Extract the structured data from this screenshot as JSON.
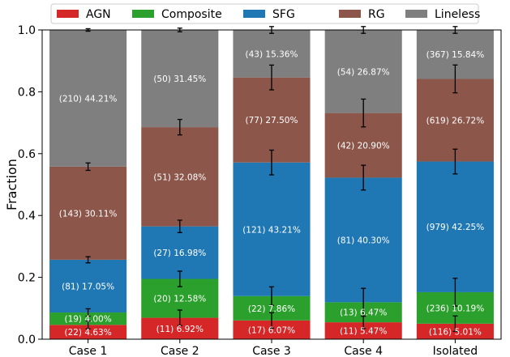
{
  "chart_data": {
    "type": "bar",
    "stacked": true,
    "ylabel": "Fraction",
    "xlabel": "",
    "ylim": [
      0,
      1
    ],
    "yticks": [
      "0.0",
      "0.2",
      "0.4",
      "0.6",
      "0.8",
      "1.0"
    ],
    "legend_position": "top",
    "categories": [
      "Case 1",
      "Case 2",
      "Case 3",
      "Case 4",
      "Isolated"
    ],
    "series": [
      {
        "name": "AGN",
        "color": "#d62728",
        "values": [
          0.0463,
          0.0692,
          0.0607,
          0.0547,
          0.0501
        ],
        "counts": [
          22,
          11,
          17,
          11,
          116
        ],
        "labels": [
          "(22) 4.63%",
          "(11) 6.92%",
          "(17) 6.07%",
          "(11) 5.47%",
          "(116) 5.01%"
        ]
      },
      {
        "name": "Composite",
        "color": "#2ca02c",
        "values": [
          0.04,
          0.1258,
          0.0786,
          0.0647,
          0.1019
        ],
        "counts": [
          19,
          20,
          22,
          13,
          236
        ],
        "labels": [
          "(19) 4.00%",
          "(20) 12.58%",
          "(22) 7.86%",
          "(13) 6.47%",
          "(236) 10.19%"
        ]
      },
      {
        "name": "SFG",
        "color": "#1f77b4",
        "values": [
          0.1705,
          0.1698,
          0.4321,
          0.403,
          0.4225
        ],
        "counts": [
          81,
          27,
          121,
          81,
          979
        ],
        "labels": [
          "(81) 17.05%",
          "(27) 16.98%",
          "(121) 43.21%",
          "(81) 40.30%",
          "(979) 42.25%"
        ]
      },
      {
        "name": "RG",
        "color": "#8c564b",
        "values": [
          0.3011,
          0.3208,
          0.275,
          0.209,
          0.2672
        ],
        "counts": [
          143,
          51,
          77,
          42,
          619
        ],
        "labels": [
          "(143) 30.11%",
          "(51) 32.08%",
          "(77) 27.50%",
          "(42) 20.90%",
          "(619) 26.72%"
        ]
      },
      {
        "name": "Lineless",
        "color": "#7f7f7f",
        "values": [
          0.4421,
          0.3145,
          0.1536,
          0.2687,
          0.1584
        ],
        "counts": [
          210,
          50,
          43,
          54,
          367
        ],
        "labels": [
          "(210) 44.21%",
          "(50) 31.45%",
          "(43) 15.36%",
          "(54) 26.87%",
          "(367) 15.84%"
        ]
      }
    ],
    "error_bars": [
      [
        0.013,
        0.025,
        0.025,
        0.02,
        0.025
      ],
      [
        0.012,
        0.025,
        0.03,
        0.045,
        0.045
      ],
      [
        0.01,
        0.02,
        0.04,
        0.04,
        0.04
      ],
      [
        0.012,
        0.025,
        0.04,
        0.045,
        0.045
      ],
      [
        0.004,
        0.006,
        0.011,
        0.011,
        0.011
      ]
    ]
  }
}
